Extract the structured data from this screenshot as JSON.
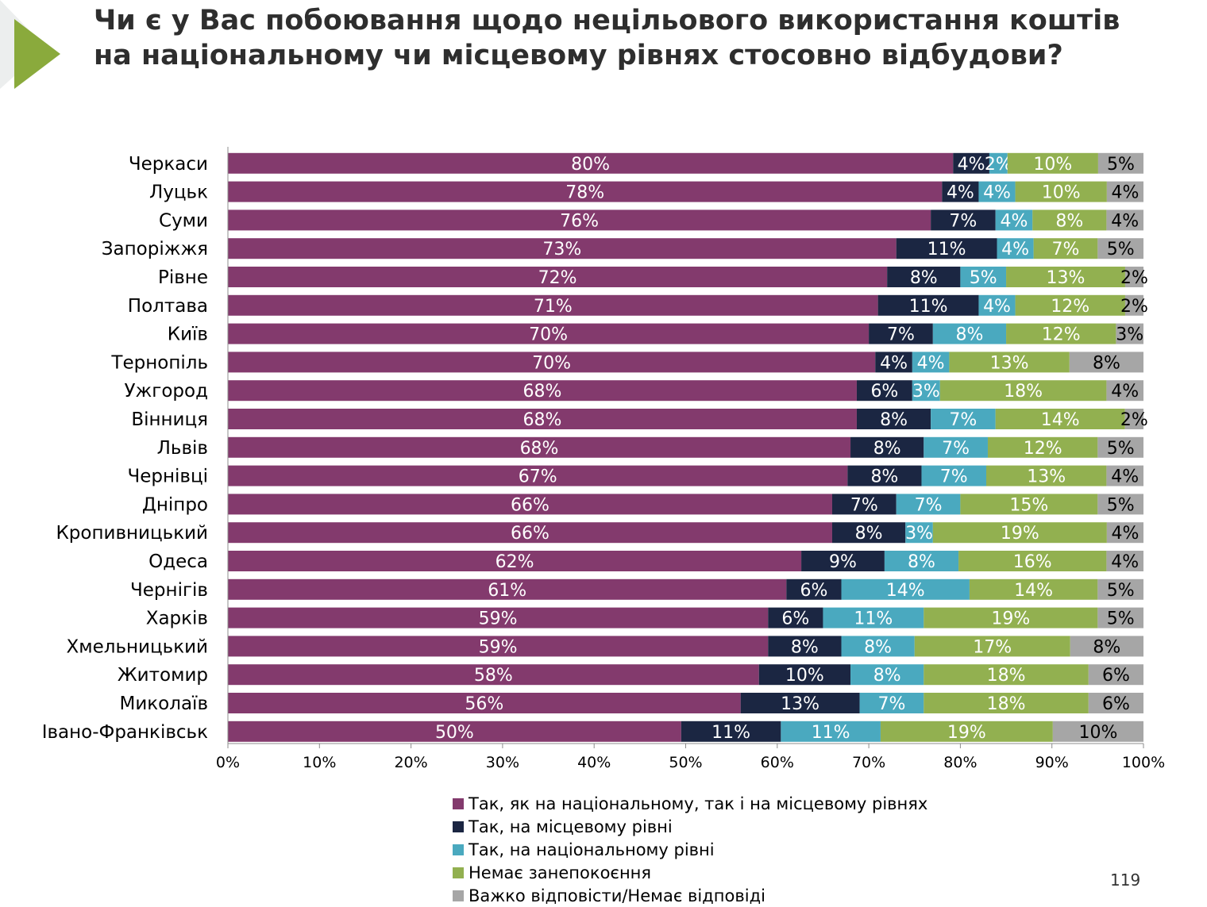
{
  "page": {
    "title": "Чи є у Вас побоювання щодо нецільового використання коштів на національному чи місцевому рівнях стосовно відбудови?",
    "page_number": "119",
    "accent_color": "#8aaa3c"
  },
  "chart_data": {
    "type": "bar",
    "orientation": "horizontal",
    "stacked": true,
    "categories": [
      "Черкаси",
      "Луцьк",
      "Суми",
      "Запоріжжя",
      "Рівне",
      "Полтава",
      "Київ",
      "Тернопіль",
      "Ужгород",
      "Вінниця",
      "Львів",
      "Чернівці",
      "Дніпро",
      "Кропивницький",
      "Одеса",
      "Чернігів",
      "Харків",
      "Хмельницький",
      "Житомир",
      "Миколаїв",
      "Івано-Франківськ"
    ],
    "series": [
      {
        "name": "Так, як на національному, так і на місцевому рівнях",
        "color": "#833a6d",
        "label_color": "#ffffff",
        "values": [
          80,
          78,
          76,
          73,
          72,
          71,
          70,
          70,
          68,
          68,
          68,
          67,
          66,
          66,
          62,
          61,
          59,
          59,
          58,
          56,
          50
        ]
      },
      {
        "name": "Так, на місцевому рівні",
        "color": "#1b2642",
        "label_color": "#ffffff",
        "values": [
          4,
          4,
          7,
          11,
          8,
          11,
          7,
          4,
          6,
          8,
          8,
          8,
          7,
          8,
          9,
          6,
          6,
          8,
          10,
          13,
          11
        ]
      },
      {
        "name": "Так, на національному рівні",
        "color": "#4aa9bf",
        "label_color": "#ffffff",
        "values": [
          2,
          4,
          4,
          4,
          5,
          4,
          8,
          4,
          3,
          7,
          7,
          7,
          7,
          3,
          8,
          14,
          11,
          8,
          8,
          7,
          11
        ]
      },
      {
        "name": "Немає занепокоєння",
        "color": "#92b050",
        "label_color": "#ffffff",
        "values": [
          10,
          10,
          8,
          7,
          13,
          12,
          12,
          13,
          18,
          14,
          12,
          13,
          15,
          19,
          16,
          14,
          19,
          17,
          18,
          18,
          19
        ]
      },
      {
        "name": "Важко відповісти/Немає відповіді",
        "color": "#a6a6a6",
        "label_color": "#000000",
        "values": [
          5,
          4,
          4,
          5,
          2,
          2,
          3,
          8,
          4,
          2,
          5,
          4,
          5,
          4,
          4,
          5,
          5,
          8,
          6,
          6,
          10
        ]
      }
    ],
    "x_ticks": [
      "0%",
      "10%",
      "20%",
      "30%",
      "40%",
      "50%",
      "60%",
      "70%",
      "80%",
      "90%",
      "100%"
    ],
    "xlim": [
      0,
      100
    ],
    "value_suffix": "%",
    "grid": false,
    "legend_position": "bottom"
  }
}
